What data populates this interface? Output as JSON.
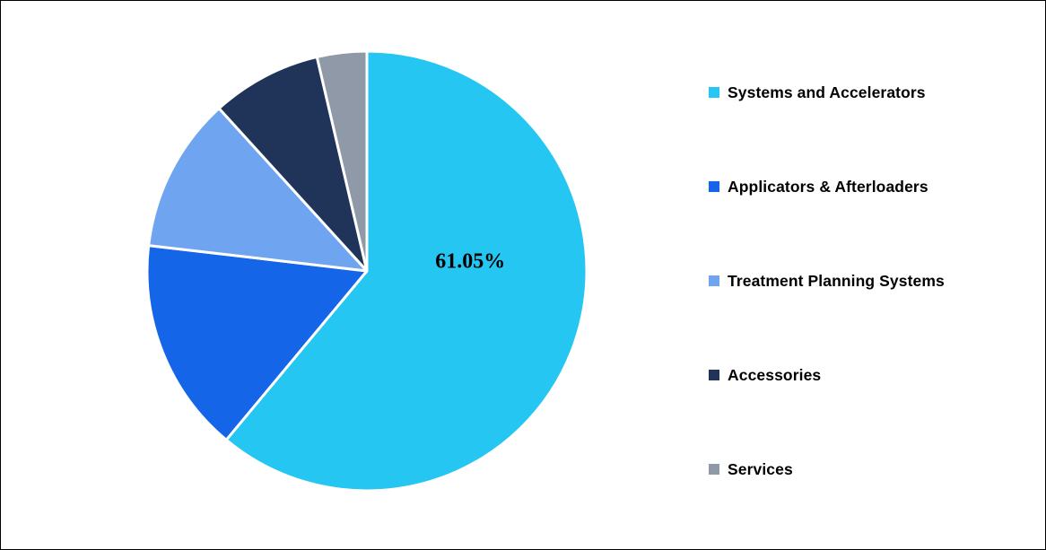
{
  "chart_data": {
    "type": "pie",
    "title": "",
    "labels": [
      "Systems and Accelerators",
      "Applicators & Afterloaders",
      "Treatment Planning Systems",
      "Accessories",
      "Services"
    ],
    "values": [
      61.05,
      15.8,
      11.4,
      8.1,
      3.65
    ],
    "colors": [
      "#25C6F1",
      "#1565E8",
      "#6FA5F0",
      "#20345A",
      "#8F99A8"
    ],
    "data_labels": [
      "61.05%",
      "",
      "",
      "",
      ""
    ],
    "start_angle_deg": 0,
    "direction": "clockwise",
    "legend_position": "right",
    "background_color": "#FFFFFF",
    "border_color": "#000000",
    "slice_separator_color": "#FFFFFF"
  }
}
